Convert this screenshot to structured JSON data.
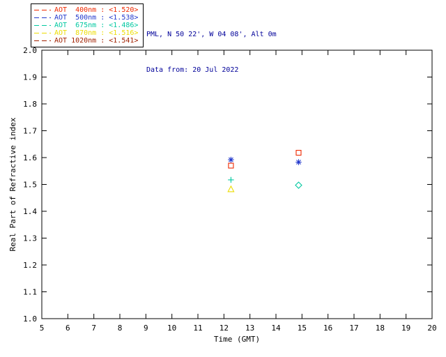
{
  "header": {
    "location": "PML, N 50 22', W 04 08', Alt 0m",
    "date": "Data from: 20 Jul 2022"
  },
  "legend": {
    "items": [
      {
        "label": "AOT  400nm : <1.520>",
        "color": "#ee2800"
      },
      {
        "label": "AOT  500nm : <1.538>",
        "color": "#2238cc"
      },
      {
        "label": "AOT  675nm : <1.486>",
        "color": "#00c8a0"
      },
      {
        "label": "AOT  870nm : <1.516>",
        "color": "#ecdc00"
      },
      {
        "label": "AOT 1020nm : <1.541>",
        "color": "#a02000"
      }
    ]
  },
  "chart_data": {
    "type": "scatter",
    "title": "",
    "xlabel": "Time (GMT)",
    "ylabel": "Real Part of Refractive index",
    "xlim": [
      5,
      20
    ],
    "ylim": [
      1.0,
      2.0
    ],
    "xticks": [
      5,
      6,
      7,
      8,
      9,
      10,
      11,
      12,
      13,
      14,
      15,
      16,
      17,
      18,
      19,
      20
    ],
    "yticks": [
      "1.0",
      "1.1",
      "1.2",
      "1.3",
      "1.4",
      "1.5",
      "1.6",
      "1.7",
      "1.8",
      "1.9",
      "2.0"
    ],
    "grid": false,
    "legend_position": "top-left-outside",
    "series": [
      {
        "name": "AOT 400nm",
        "mean": 1.52,
        "color": "#ee2800",
        "marker": "square",
        "points": [
          [
            12.27,
            1.57
          ],
          [
            14.87,
            1.618
          ]
        ]
      },
      {
        "name": "AOT 500nm",
        "mean": 1.538,
        "color": "#2238cc",
        "marker": "asterisk",
        "points": [
          [
            12.27,
            1.592
          ],
          [
            14.87,
            1.583
          ]
        ]
      },
      {
        "name": "AOT 675nm",
        "mean": 1.486,
        "color": "#00c8a0",
        "marker": "plus",
        "points": [
          [
            12.27,
            1.517
          ]
        ]
      },
      {
        "name": "AOT 675nm",
        "mean": 1.486,
        "color": "#00c8a0",
        "marker": "diamond",
        "points": [
          [
            14.87,
            1.497
          ]
        ]
      },
      {
        "name": "AOT 870nm",
        "mean": 1.516,
        "color": "#ecdc00",
        "marker": "triangle",
        "points": [
          [
            12.27,
            1.482
          ]
        ]
      }
    ]
  }
}
